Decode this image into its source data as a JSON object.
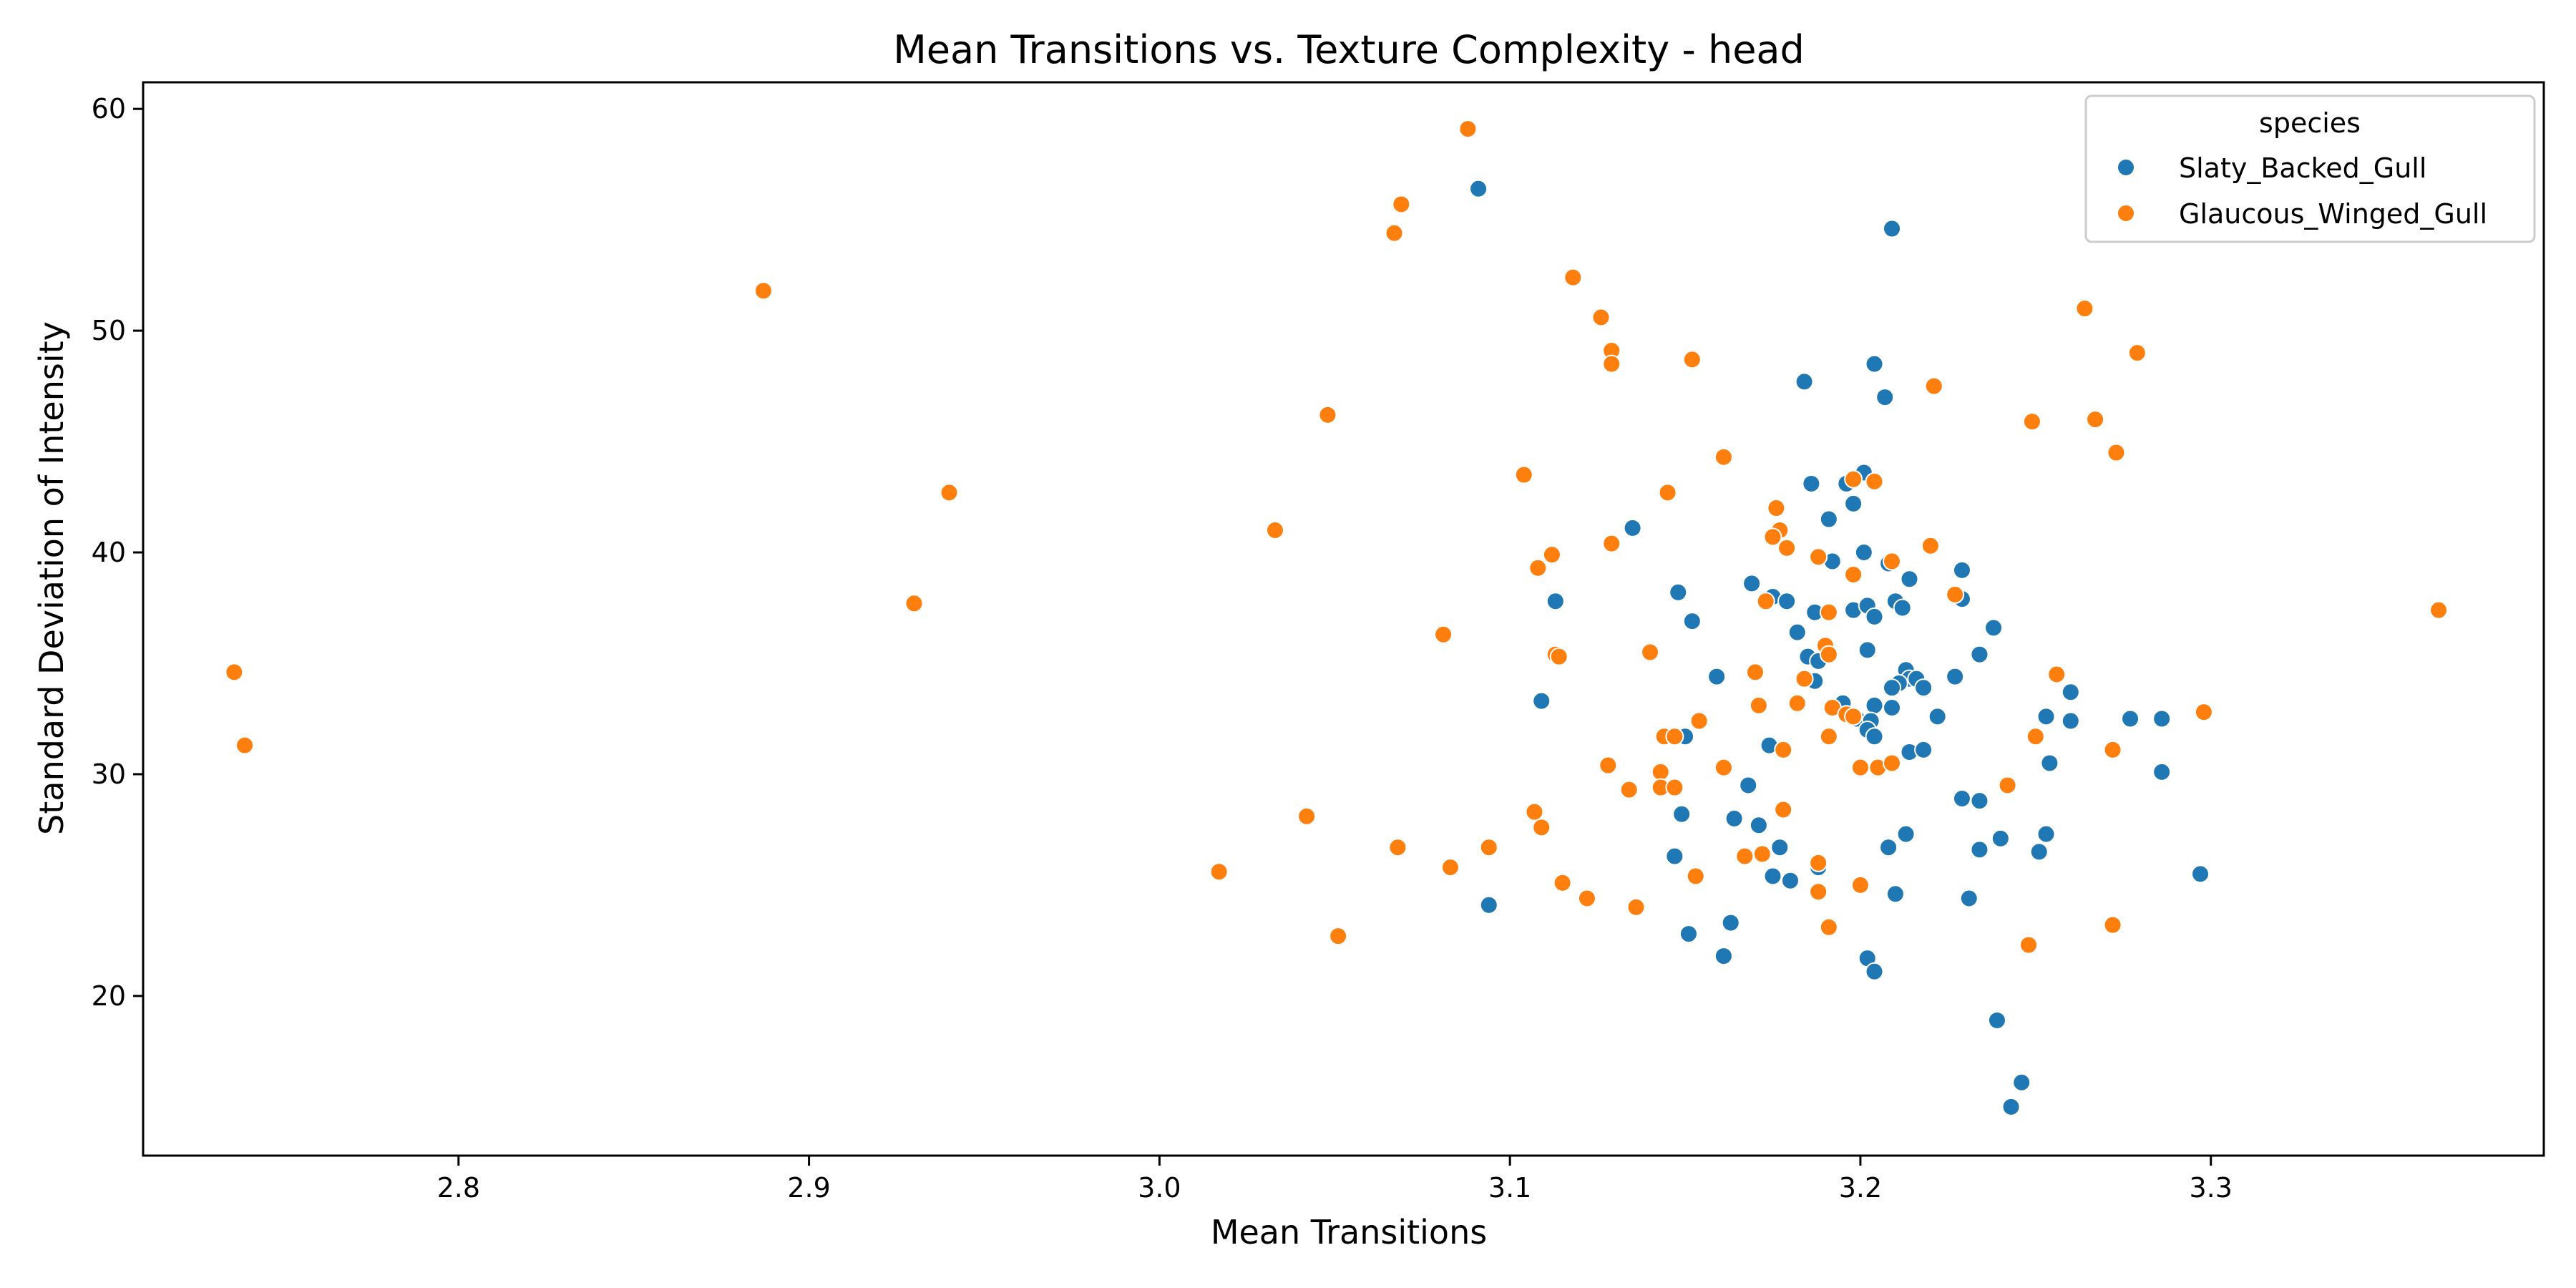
{
  "chart_data": {
    "type": "scatter",
    "title": "Mean Transitions vs. Texture Complexity - head",
    "xlabel": "Mean Transitions",
    "ylabel": "Standard Deviation of Intensity",
    "xlim": [
      2.71,
      3.395
    ],
    "ylim": [
      12.8,
      61.2
    ],
    "x_ticks": [
      2.8,
      2.9,
      3.0,
      3.1,
      3.2,
      3.3
    ],
    "x_tick_labels": [
      "2.8",
      "2.9",
      "3.0",
      "3.1",
      "3.2",
      "3.3"
    ],
    "y_ticks": [
      20,
      30,
      40,
      50,
      60
    ],
    "y_tick_labels": [
      "20",
      "30",
      "40",
      "50",
      "60"
    ],
    "grid": false,
    "legend": {
      "title": "species",
      "position": "top-right"
    },
    "series": [
      {
        "name": "Slaty_Backed_Gull",
        "color": "#1f77b4",
        "points": [
          [
            3.091,
            56.4
          ],
          [
            3.209,
            54.6
          ],
          [
            3.184,
            47.7
          ],
          [
            3.204,
            48.5
          ],
          [
            3.207,
            47.0
          ],
          [
            3.201,
            43.6
          ],
          [
            3.186,
            43.1
          ],
          [
            3.196,
            43.1
          ],
          [
            3.198,
            42.2
          ],
          [
            3.135,
            41.1
          ],
          [
            3.191,
            41.5
          ],
          [
            3.201,
            40.0
          ],
          [
            3.192,
            39.6
          ],
          [
            3.208,
            39.5
          ],
          [
            3.214,
            38.8
          ],
          [
            3.229,
            39.2
          ],
          [
            3.113,
            37.8
          ],
          [
            3.148,
            38.2
          ],
          [
            3.169,
            38.6
          ],
          [
            3.175,
            38.0
          ],
          [
            3.179,
            37.8
          ],
          [
            3.187,
            37.3
          ],
          [
            3.198,
            37.4
          ],
          [
            3.202,
            37.6
          ],
          [
            3.204,
            37.1
          ],
          [
            3.21,
            37.8
          ],
          [
            3.212,
            37.5
          ],
          [
            3.229,
            37.9
          ],
          [
            3.238,
            36.6
          ],
          [
            3.152,
            36.9
          ],
          [
            3.182,
            36.4
          ],
          [
            3.185,
            35.3
          ],
          [
            3.19,
            35.7
          ],
          [
            3.188,
            35.1
          ],
          [
            3.202,
            35.6
          ],
          [
            3.234,
            35.4
          ],
          [
            3.187,
            34.2
          ],
          [
            3.213,
            34.7
          ],
          [
            3.214,
            34.3
          ],
          [
            3.216,
            34.3
          ],
          [
            3.211,
            34.1
          ],
          [
            3.218,
            33.9
          ],
          [
            3.209,
            33.9
          ],
          [
            3.159,
            34.4
          ],
          [
            3.227,
            34.4
          ],
          [
            3.26,
            33.7
          ],
          [
            3.109,
            33.3
          ],
          [
            3.195,
            33.2
          ],
          [
            3.204,
            33.1
          ],
          [
            3.209,
            33.0
          ],
          [
            3.199,
            32.5
          ],
          [
            3.203,
            32.4
          ],
          [
            3.222,
            32.6
          ],
          [
            3.253,
            32.6
          ],
          [
            3.26,
            32.4
          ],
          [
            3.277,
            32.5
          ],
          [
            3.286,
            32.5
          ],
          [
            3.15,
            31.7
          ],
          [
            3.174,
            31.3
          ],
          [
            3.202,
            32.0
          ],
          [
            3.204,
            31.7
          ],
          [
            3.214,
            31.0
          ],
          [
            3.218,
            31.1
          ],
          [
            3.254,
            30.5
          ],
          [
            3.286,
            30.1
          ],
          [
            3.168,
            29.5
          ],
          [
            3.229,
            28.9
          ],
          [
            3.234,
            28.8
          ],
          [
            3.149,
            28.2
          ],
          [
            3.164,
            28.0
          ],
          [
            3.171,
            27.7
          ],
          [
            3.177,
            26.7
          ],
          [
            3.213,
            27.3
          ],
          [
            3.208,
            26.7
          ],
          [
            3.234,
            26.6
          ],
          [
            3.24,
            27.1
          ],
          [
            3.253,
            27.3
          ],
          [
            3.251,
            26.5
          ],
          [
            3.147,
            26.3
          ],
          [
            3.188,
            25.8
          ],
          [
            3.175,
            25.4
          ],
          [
            3.18,
            25.2
          ],
          [
            3.21,
            24.6
          ],
          [
            3.231,
            24.4
          ],
          [
            3.297,
            25.5
          ],
          [
            3.094,
            24.1
          ],
          [
            3.163,
            23.3
          ],
          [
            3.151,
            22.8
          ],
          [
            3.161,
            21.8
          ],
          [
            3.202,
            21.7
          ],
          [
            3.204,
            21.1
          ],
          [
            3.239,
            18.9
          ],
          [
            3.246,
            16.1
          ],
          [
            3.243,
            15.0
          ]
        ]
      },
      {
        "name": "Glaucous_Winged_Gull",
        "color": "#ff7f0e",
        "points": [
          [
            3.088,
            59.1
          ],
          [
            3.069,
            55.7
          ],
          [
            3.067,
            54.4
          ],
          [
            3.118,
            52.4
          ],
          [
            2.887,
            51.8
          ],
          [
            3.126,
            50.6
          ],
          [
            3.264,
            51.0
          ],
          [
            3.129,
            49.1
          ],
          [
            3.129,
            48.5
          ],
          [
            3.152,
            48.7
          ],
          [
            3.279,
            49.0
          ],
          [
            3.221,
            47.5
          ],
          [
            3.048,
            46.2
          ],
          [
            3.249,
            45.9
          ],
          [
            3.267,
            46.0
          ],
          [
            3.161,
            44.3
          ],
          [
            3.273,
            44.5
          ],
          [
            3.104,
            43.5
          ],
          [
            3.198,
            43.3
          ],
          [
            3.204,
            43.2
          ],
          [
            2.94,
            42.7
          ],
          [
            3.145,
            42.7
          ],
          [
            3.176,
            42.0
          ],
          [
            3.033,
            41.0
          ],
          [
            3.177,
            41.0
          ],
          [
            3.175,
            40.7
          ],
          [
            3.129,
            40.4
          ],
          [
            3.179,
            40.2
          ],
          [
            3.22,
            40.3
          ],
          [
            3.112,
            39.9
          ],
          [
            3.188,
            39.8
          ],
          [
            3.209,
            39.6
          ],
          [
            3.108,
            39.3
          ],
          [
            3.198,
            39.0
          ],
          [
            3.227,
            38.1
          ],
          [
            2.93,
            37.7
          ],
          [
            3.173,
            37.8
          ],
          [
            3.191,
            37.3
          ],
          [
            3.365,
            37.4
          ],
          [
            3.081,
            36.3
          ],
          [
            3.19,
            35.8
          ],
          [
            3.191,
            35.4
          ],
          [
            3.113,
            35.4
          ],
          [
            3.114,
            35.3
          ],
          [
            3.14,
            35.5
          ],
          [
            2.736,
            34.6
          ],
          [
            3.17,
            34.6
          ],
          [
            3.184,
            34.3
          ],
          [
            3.256,
            34.5
          ],
          [
            3.171,
            33.1
          ],
          [
            3.182,
            33.2
          ],
          [
            3.192,
            33.0
          ],
          [
            3.196,
            32.7
          ],
          [
            3.198,
            32.6
          ],
          [
            3.298,
            32.8
          ],
          [
            3.154,
            32.4
          ],
          [
            2.739,
            31.3
          ],
          [
            3.144,
            31.7
          ],
          [
            3.147,
            31.7
          ],
          [
            3.191,
            31.7
          ],
          [
            3.178,
            31.1
          ],
          [
            3.25,
            31.7
          ],
          [
            3.272,
            31.1
          ],
          [
            3.128,
            30.4
          ],
          [
            3.161,
            30.3
          ],
          [
            3.2,
            30.3
          ],
          [
            3.205,
            30.3
          ],
          [
            3.209,
            30.5
          ],
          [
            3.143,
            30.1
          ],
          [
            3.134,
            29.3
          ],
          [
            3.143,
            29.4
          ],
          [
            3.147,
            29.4
          ],
          [
            3.242,
            29.5
          ],
          [
            3.107,
            28.3
          ],
          [
            3.178,
            28.4
          ],
          [
            3.042,
            28.1
          ],
          [
            3.109,
            27.6
          ],
          [
            3.068,
            26.7
          ],
          [
            3.094,
            26.7
          ],
          [
            3.167,
            26.3
          ],
          [
            3.172,
            26.4
          ],
          [
            3.188,
            26.0
          ],
          [
            3.017,
            25.6
          ],
          [
            3.083,
            25.8
          ],
          [
            3.153,
            25.4
          ],
          [
            3.115,
            25.1
          ],
          [
            3.188,
            24.7
          ],
          [
            3.2,
            25.0
          ],
          [
            3.122,
            24.4
          ],
          [
            3.136,
            24.0
          ],
          [
            3.051,
            22.7
          ],
          [
            3.191,
            23.1
          ],
          [
            3.272,
            23.2
          ],
          [
            3.248,
            22.3
          ]
        ]
      }
    ]
  }
}
